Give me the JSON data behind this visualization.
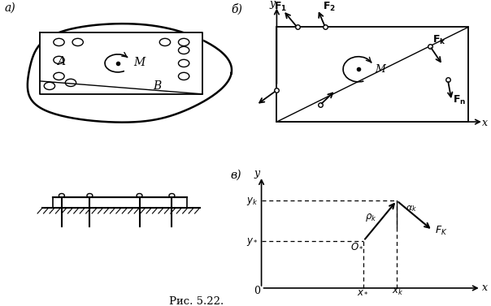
{
  "fig_width": 6.04,
  "fig_height": 3.77,
  "dpi": 100,
  "background": "#ffffff",
  "caption": "Рис. 5.22.",
  "label_a": "а)",
  "label_b": "б)",
  "label_v": "в)"
}
